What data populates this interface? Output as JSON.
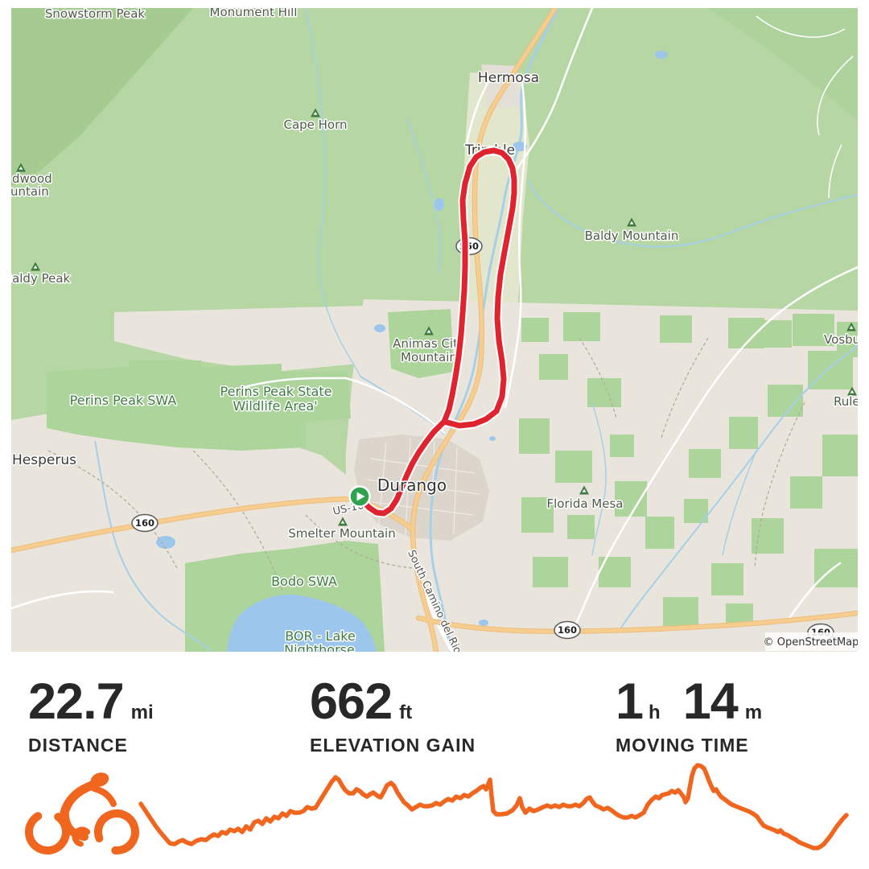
{
  "colors": {
    "accent_orange": "#F0661F",
    "route_red": "#DF2430",
    "start_marker_green": "#2FA24E",
    "stat_text": "#282828",
    "map_forest_green": "#B6D6A4",
    "map_lowland_gray": "#E9E5DD",
    "map_water_blue": "#A6CFE8",
    "map_road_yellow": "#F6CD8F"
  },
  "map": {
    "attribution": "© OpenStreetMap",
    "labels": {
      "snowstorm_peak": "Snowstorm Peak",
      "monument_hill": "Monument Hill",
      "hermosa": "Hermosa",
      "cape_horn": "Cape Horn",
      "deadwood_line1": "dwood",
      "deadwood_line2": "untain",
      "baldy_peak": "Baldy Peak",
      "trimble": "Trimble",
      "baldy_mountain": "Baldy Mountain",
      "vosburg": "Vosburg",
      "rules": "Rules",
      "animas_line1": "Animas City",
      "animas_line2": "Mountain",
      "perins_swa": "Perins Peak SWA",
      "perins_state_line1": "Perins Peak State",
      "perins_state_line2": "Wildlife Area'",
      "hesperus": "Hesperus",
      "durango": "Durango",
      "florida_mesa": "Florida Mesa",
      "smelter_mountain": "Smelter Mountain",
      "bodo_swa": "Bodo SWA",
      "bor_line1": "BOR - Lake",
      "bor_line2": "Nighthorse",
      "us160": "US-160",
      "south_camino": "South Camino del Rio",
      "shield_550": "550",
      "shield_160": "160"
    }
  },
  "route": {
    "start": [
      447,
      617
    ],
    "stem": [
      [
        447,
        617
      ],
      [
        452,
        624
      ],
      [
        459,
        631
      ],
      [
        468,
        637
      ],
      [
        477,
        638
      ],
      [
        486,
        632
      ],
      [
        493,
        621
      ],
      [
        499,
        607
      ],
      [
        505,
        592
      ],
      [
        512,
        577
      ],
      [
        520,
        563
      ],
      [
        529,
        550
      ],
      [
        539,
        537
      ],
      [
        549,
        527
      ],
      [
        552,
        524
      ]
    ],
    "loop": [
      [
        552,
        524
      ],
      [
        558,
        509
      ],
      [
        562,
        491
      ],
      [
        566,
        469
      ],
      [
        570,
        443
      ],
      [
        573,
        416
      ],
      [
        575,
        389
      ],
      [
        577,
        361
      ],
      [
        578,
        331
      ],
      [
        578,
        301
      ],
      [
        576,
        273
      ],
      [
        575,
        249
      ],
      [
        578,
        228
      ],
      [
        584,
        207
      ],
      [
        592,
        195
      ],
      [
        602,
        189
      ],
      [
        614,
        187
      ],
      [
        624,
        190
      ],
      [
        632,
        198
      ],
      [
        637,
        209
      ],
      [
        639,
        223
      ],
      [
        639,
        240
      ],
      [
        637,
        259
      ],
      [
        632,
        286
      ],
      [
        627,
        313
      ],
      [
        622,
        341
      ],
      [
        619,
        369
      ],
      [
        618,
        396
      ],
      [
        620,
        423
      ],
      [
        624,
        449
      ],
      [
        626,
        471
      ],
      [
        624,
        493
      ],
      [
        617,
        511
      ],
      [
        604,
        521
      ],
      [
        589,
        527
      ],
      [
        571,
        529
      ],
      [
        552,
        524
      ]
    ]
  },
  "stats": [
    {
      "value": "22.7",
      "unit": "mi",
      "label": "DISTANCE"
    },
    {
      "value": "662",
      "unit": "ft",
      "label": "ELEVATION GAIN"
    },
    {
      "value": "1",
      "unit": "h",
      "value2": "14",
      "unit2": "m",
      "label": "MOVING TIME"
    }
  ],
  "chart_data": {
    "type": "line",
    "title": "Elevation profile sparkline (no axes shown)",
    "xlabel": "distance (unlabeled)",
    "ylabel": "elevation (unlabeled)",
    "legend": "none",
    "grid": false,
    "series": [
      {
        "name": "elevation",
        "points": [
          [
            175,
            999
          ],
          [
            181,
            1008
          ],
          [
            187,
            1017
          ],
          [
            193,
            1026
          ],
          [
            199,
            1034
          ],
          [
            205,
            1041
          ],
          [
            211,
            1048
          ],
          [
            217,
            1049
          ],
          [
            222,
            1046
          ],
          [
            227,
            1044
          ],
          [
            232,
            1047
          ],
          [
            238,
            1049
          ],
          [
            244,
            1045
          ],
          [
            250,
            1043
          ],
          [
            256,
            1044
          ],
          [
            261,
            1040
          ],
          [
            266,
            1037
          ],
          [
            271,
            1039
          ],
          [
            276,
            1034
          ],
          [
            281,
            1036
          ],
          [
            286,
            1031
          ],
          [
            291,
            1033
          ],
          [
            296,
            1030
          ],
          [
            301,
            1034
          ],
          [
            306,
            1027
          ],
          [
            311,
            1031
          ],
          [
            316,
            1022
          ],
          [
            321,
            1020
          ],
          [
            326,
            1024
          ],
          [
            331,
            1017
          ],
          [
            336,
            1021
          ],
          [
            341,
            1015
          ],
          [
            346,
            1017
          ],
          [
            351,
            1011
          ],
          [
            356,
            1014
          ],
          [
            361,
            1008
          ],
          [
            366,
            1010
          ],
          [
            372,
            1010
          ],
          [
            377,
            1008
          ],
          [
            382,
            1003
          ],
          [
            387,
            1005
          ],
          [
            392,
            1004
          ],
          [
            397,
            996
          ],
          [
            402,
            988
          ],
          [
            407,
            980
          ],
          [
            412,
            972
          ],
          [
            417,
            966
          ],
          [
            421,
            969
          ],
          [
            425,
            976
          ],
          [
            429,
            982
          ],
          [
            434,
            986
          ],
          [
            439,
            986
          ],
          [
            443,
            981
          ],
          [
            447,
            983
          ],
          [
            451,
            987
          ],
          [
            456,
            990
          ],
          [
            460,
            987
          ],
          [
            464,
            985
          ],
          [
            469,
            989
          ],
          [
            473,
            991
          ],
          [
            477,
            984
          ],
          [
            481,
            976
          ],
          [
            486,
            973
          ],
          [
            490,
            977
          ],
          [
            494,
            985
          ],
          [
            498,
            991
          ],
          [
            502,
            997
          ],
          [
            507,
            1001
          ],
          [
            512,
            1006
          ],
          [
            517,
            1003
          ],
          [
            522,
            1000
          ],
          [
            527,
            1002
          ],
          [
            532,
            1002
          ],
          [
            537,
            1001
          ],
          [
            542,
            998
          ],
          [
            547,
            1000
          ],
          [
            552,
            996
          ],
          [
            557,
            993
          ],
          [
            562,
            995
          ],
          [
            567,
            990
          ],
          [
            572,
            992
          ],
          [
            577,
            988
          ],
          [
            582,
            990
          ],
          [
            587,
            986
          ],
          [
            592,
            983
          ],
          [
            597,
            979
          ],
          [
            601,
            977
          ],
          [
            604,
            981
          ],
          [
            607,
            974
          ],
          [
            609,
            969
          ],
          [
            611,
            990
          ],
          [
            613,
            1008
          ],
          [
            617,
            1012
          ],
          [
            623,
            1012
          ],
          [
            630,
            1011
          ],
          [
            637,
            1007
          ],
          [
            642,
            1001
          ],
          [
            646,
            992
          ],
          [
            649,
            1003
          ],
          [
            653,
            1010
          ],
          [
            658,
            1005
          ],
          [
            663,
            1008
          ],
          [
            669,
            1006
          ],
          [
            675,
            1003
          ],
          [
            680,
            1001
          ],
          [
            685,
            1003
          ],
          [
            690,
            1001
          ],
          [
            695,
            1003
          ],
          [
            700,
            1000
          ],
          [
            705,
            1002
          ],
          [
            710,
            1002
          ],
          [
            715,
            1000
          ],
          [
            720,
            1002
          ],
          [
            725,
            998
          ],
          [
            729,
            993
          ],
          [
            733,
            991
          ],
          [
            736,
            996
          ],
          [
            740,
            1001
          ],
          [
            745,
            1003
          ],
          [
            750,
            1006
          ],
          [
            755,
            1004
          ],
          [
            760,
            1007
          ],
          [
            765,
            1011
          ],
          [
            770,
            1014
          ],
          [
            775,
            1016
          ],
          [
            780,
            1016
          ],
          [
            785,
            1014
          ],
          [
            790,
            1016
          ],
          [
            795,
            1013
          ],
          [
            800,
            1010
          ],
          [
            805,
            1000
          ],
          [
            810,
            994
          ],
          [
            815,
            990
          ],
          [
            819,
            992
          ],
          [
            823,
            988
          ],
          [
            827,
            987
          ],
          [
            831,
            986
          ],
          [
            835,
            983
          ],
          [
            839,
            985
          ],
          [
            843,
            982
          ],
          [
            847,
            987
          ],
          [
            850,
            991
          ],
          [
            852,
            997
          ],
          [
            855,
            992
          ],
          [
            857,
            980
          ],
          [
            860,
            964
          ],
          [
            863,
            955
          ],
          [
            867,
            951
          ],
          [
            871,
            952
          ],
          [
            875,
            955
          ],
          [
            878,
            962
          ],
          [
            881,
            970
          ],
          [
            884,
            977
          ],
          [
            887,
            983
          ],
          [
            890,
            981
          ],
          [
            893,
            986
          ],
          [
            896,
            990
          ],
          [
            900,
            993
          ],
          [
            904,
            996
          ],
          [
            908,
            999
          ],
          [
            912,
            1001
          ],
          [
            917,
            1003
          ],
          [
            922,
            1005
          ],
          [
            927,
            1007
          ],
          [
            932,
            1009
          ],
          [
            937,
            1012
          ],
          [
            941,
            1015
          ],
          [
            945,
            1021
          ],
          [
            949,
            1026
          ],
          [
            953,
            1028
          ],
          [
            958,
            1030
          ],
          [
            963,
            1032
          ],
          [
            967,
            1034
          ],
          [
            970,
            1032
          ],
          [
            974,
            1036
          ],
          [
            979,
            1038
          ],
          [
            984,
            1041
          ],
          [
            988,
            1043
          ],
          [
            992,
            1046
          ],
          [
            996,
            1048
          ],
          [
            1001,
            1050
          ],
          [
            1006,
            1052
          ],
          [
            1011,
            1054
          ],
          [
            1016,
            1054
          ],
          [
            1020,
            1052
          ],
          [
            1024,
            1049
          ],
          [
            1028,
            1044
          ],
          [
            1032,
            1039
          ],
          [
            1036,
            1033
          ],
          [
            1040,
            1027
          ],
          [
            1044,
            1022
          ],
          [
            1048,
            1017
          ],
          [
            1052,
            1013
          ]
        ]
      }
    ]
  }
}
